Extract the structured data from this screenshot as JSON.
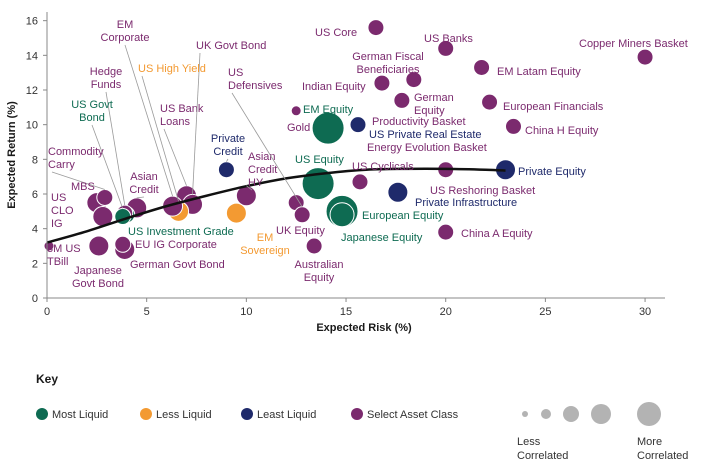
{
  "chart_data": {
    "type": "scatter",
    "xlabel": "Expected Risk (%)",
    "ylabel": "Expected Return (%)",
    "xlim": [
      0,
      31
    ],
    "ylim": [
      0,
      16.5
    ],
    "x_ticks": [
      "0",
      "5",
      "10",
      "15",
      "20",
      "25",
      "30"
    ],
    "y_ticks": [
      "0",
      "2",
      "4",
      "6",
      "8",
      "10",
      "12",
      "14",
      "16"
    ],
    "grid": false,
    "colors": {
      "most_liquid": "#0e6b52",
      "less_liquid": "#f39a32",
      "least_liquid": "#1f2a6b",
      "select_asset_class": "#7b2a6e",
      "curve": "#111111",
      "size_scale": "#b3b3b3"
    },
    "points": [
      {
        "name": "3M US TBill",
        "x": 0.1,
        "y": 3.0,
        "category": "select_asset_class",
        "correlation": 1
      },
      {
        "name": "US Core",
        "x": 16.5,
        "y": 15.6,
        "category": "select_asset_class",
        "correlation": 2
      },
      {
        "name": "US Banks",
        "x": 20.0,
        "y": 14.4,
        "category": "select_asset_class",
        "correlation": 2
      },
      {
        "name": "Copper Miners Basket",
        "x": 30.0,
        "y": 13.9,
        "category": "select_asset_class",
        "correlation": 2
      },
      {
        "name": "German Fiscal Beneficiaries",
        "x": 18.4,
        "y": 12.6,
        "category": "select_asset_class",
        "correlation": 2
      },
      {
        "name": "Indian Equity",
        "x": 16.8,
        "y": 12.4,
        "category": "select_asset_class",
        "correlation": 2
      },
      {
        "name": "EM Latam Equity",
        "x": 21.8,
        "y": 13.3,
        "category": "select_asset_class",
        "correlation": 2
      },
      {
        "name": "German Equity",
        "x": 17.8,
        "y": 11.4,
        "category": "select_asset_class",
        "correlation": 2
      },
      {
        "name": "European Financials",
        "x": 22.2,
        "y": 11.3,
        "category": "select_asset_class",
        "correlation": 2
      },
      {
        "name": "EM Equity",
        "x": 14.1,
        "y": 9.8,
        "category": "most_liquid",
        "correlation": 5
      },
      {
        "name": "Gold",
        "x": 12.5,
        "y": 10.8,
        "category": "select_asset_class",
        "correlation": 1
      },
      {
        "name": "Productivity Basket",
        "x": 15.6,
        "y": 10.0,
        "category": "select_asset_class",
        "correlation": 2
      },
      {
        "name": "US Private Real Estate",
        "x": 15.6,
        "y": 10.0,
        "category": "least_liquid",
        "correlation": 2
      },
      {
        "name": "China H Equity",
        "x": 23.4,
        "y": 9.9,
        "category": "select_asset_class",
        "correlation": 2
      },
      {
        "name": "Private Equity",
        "x": 23.0,
        "y": 7.4,
        "category": "least_liquid",
        "correlation": 3
      },
      {
        "name": "Private Credit",
        "x": 9.0,
        "y": 7.4,
        "category": "least_liquid",
        "correlation": 2
      },
      {
        "name": "US Equity",
        "x": 13.6,
        "y": 6.6,
        "category": "most_liquid",
        "correlation": 5
      },
      {
        "name": "US Cyclicals",
        "x": 15.7,
        "y": 6.7,
        "category": "select_asset_class",
        "correlation": 2
      },
      {
        "name": "Energy Evolution Basket",
        "x": 20.0,
        "y": 7.4,
        "category": "select_asset_class",
        "correlation": 2
      },
      {
        "name": "US Reshoring Basket",
        "x": 20.0,
        "y": 7.4,
        "category": "select_asset_class",
        "correlation": 2
      },
      {
        "name": "Private Infrastructure",
        "x": 17.6,
        "y": 6.1,
        "category": "least_liquid",
        "correlation": 3
      },
      {
        "name": "European Equity",
        "x": 14.8,
        "y": 5.0,
        "category": "most_liquid",
        "correlation": 5
      },
      {
        "name": "Japanese Equity",
        "x": 14.8,
        "y": 4.8,
        "category": "most_liquid",
        "correlation": 4
      },
      {
        "name": "China A Equity",
        "x": 20.0,
        "y": 3.8,
        "category": "select_asset_class",
        "correlation": 2
      },
      {
        "name": "UK Equity",
        "x": 12.5,
        "y": 5.5,
        "category": "select_asset_class",
        "correlation": 2
      },
      {
        "name": "Asian Credit HY",
        "x": 10.0,
        "y": 5.9,
        "category": "select_asset_class",
        "correlation": 3
      },
      {
        "name": "US Defensives",
        "x": 12.8,
        "y": 4.8,
        "category": "select_asset_class",
        "correlation": 2
      },
      {
        "name": "Australian Equity",
        "x": 13.4,
        "y": 3.0,
        "category": "select_asset_class",
        "correlation": 2
      },
      {
        "name": "EM Sovereign",
        "x": 9.5,
        "y": 4.9,
        "category": "less_liquid",
        "correlation": 3
      },
      {
        "name": "US Bank Loans",
        "x": 7.0,
        "y": 5.9,
        "category": "select_asset_class",
        "correlation": 3
      },
      {
        "name": "UK Govt Bond",
        "x": 7.3,
        "y": 5.4,
        "category": "select_asset_class",
        "correlation": 3
      },
      {
        "name": "US High Yield",
        "x": 6.6,
        "y": 5.0,
        "category": "less_liquid",
        "correlation": 3
      },
      {
        "name": "EM Corporate",
        "x": 6.3,
        "y": 5.3,
        "category": "select_asset_class",
        "correlation": 3
      },
      {
        "name": "Asian Credit",
        "x": 4.5,
        "y": 5.2,
        "category": "select_asset_class",
        "correlation": 3
      },
      {
        "name": "US Investment Grade",
        "x": 4.0,
        "y": 4.8,
        "category": "most_liquid",
        "correlation": 2
      },
      {
        "name": "Hedge Funds",
        "x": 3.9,
        "y": 4.9,
        "category": "select_asset_class",
        "correlation": 2
      },
      {
        "name": "US Govt Bond",
        "x": 3.8,
        "y": 4.7,
        "category": "most_liquid",
        "correlation": 2
      },
      {
        "name": "Commodity Carry",
        "x": 2.9,
        "y": 5.8,
        "category": "select_asset_class",
        "correlation": 2
      },
      {
        "name": "MBS",
        "x": 2.5,
        "y": 5.5,
        "category": "select_asset_class",
        "correlation": 3
      },
      {
        "name": "US CLO IG",
        "x": 2.8,
        "y": 4.7,
        "category": "select_asset_class",
        "correlation": 3
      },
      {
        "name": "EU IG Corporate",
        "x": 3.8,
        "y": 3.1,
        "category": "select_asset_class",
        "correlation": 2
      },
      {
        "name": "German Govt Bond",
        "x": 3.9,
        "y": 2.8,
        "category": "select_asset_class",
        "correlation": 3
      },
      {
        "name": "Japanese Govt Bond",
        "x": 2.6,
        "y": 3.0,
        "category": "select_asset_class",
        "correlation": 3
      }
    ],
    "frontier": [
      [
        0,
        3.2
      ],
      [
        2,
        3.85
      ],
      [
        4,
        4.6
      ],
      [
        6,
        5.3
      ],
      [
        8,
        5.9
      ],
      [
        10,
        6.45
      ],
      [
        12,
        6.9
      ],
      [
        14,
        7.2
      ],
      [
        16,
        7.4
      ],
      [
        18,
        7.45
      ],
      [
        20,
        7.45
      ],
      [
        22,
        7.4
      ],
      [
        23,
        7.35
      ]
    ],
    "key": {
      "title": "Key",
      "categories": [
        {
          "label": "Most Liquid",
          "color_key": "most_liquid"
        },
        {
          "label": "Less Liquid",
          "color_key": "less_liquid"
        },
        {
          "label": "Least Liquid",
          "color_key": "least_liquid"
        },
        {
          "label": "Select Asset Class",
          "color_key": "select_asset_class"
        }
      ],
      "size_low_label": "Less Correlated",
      "size_high_label": "More Correlated"
    }
  }
}
